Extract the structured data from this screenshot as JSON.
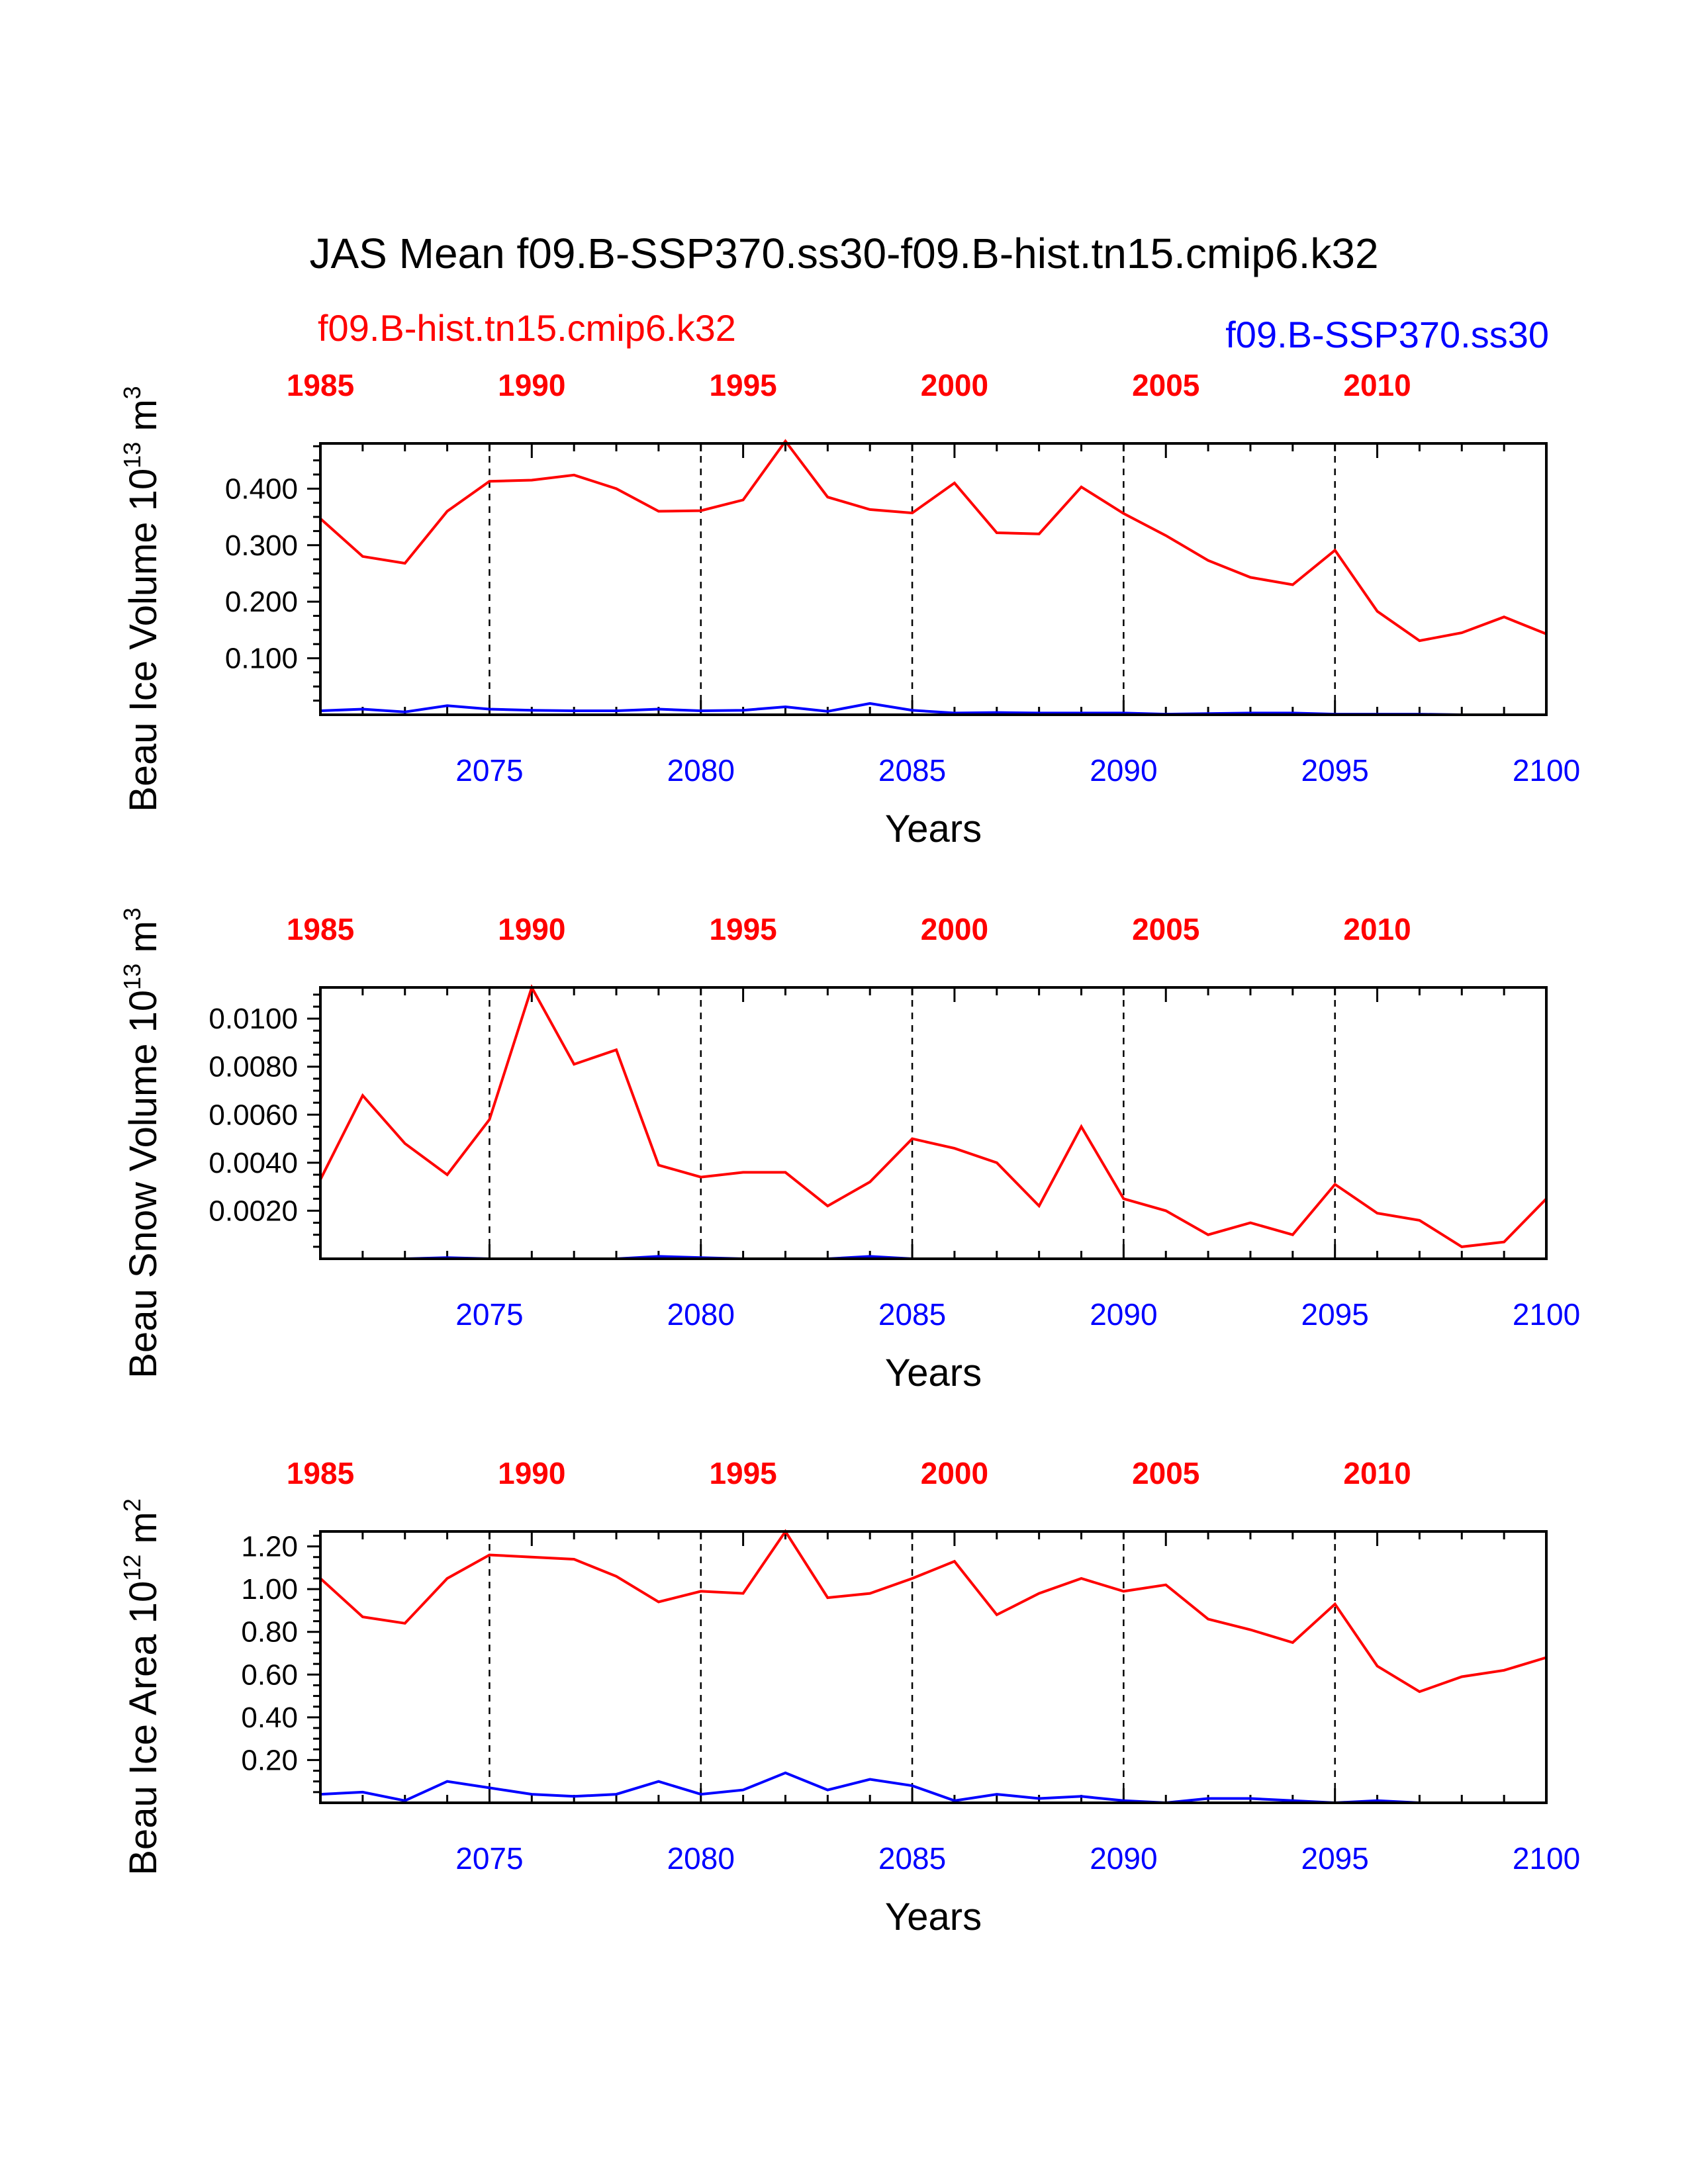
{
  "title": "JAS Mean f09.B-SSP370.ss30-f09.B-hist.tn15.cmip6.k32",
  "legend": {
    "left": "f09.B-hist.tn15.cmip6.k32",
    "right": "f09.B-SSP370.ss30"
  },
  "colors": {
    "hist": "#ff0000",
    "ssp": "#0000ff",
    "axis": "#000000"
  },
  "chart_data": [
    {
      "type": "line",
      "ylabel_main": "Beau Ice Volume 10",
      "ylabel_exp": "13",
      "ylabel_unit": " m",
      "ylabel_unit_exp": "3",
      "xlabel": "Years",
      "ylim": [
        0,
        0.48
      ],
      "yticks": [
        0.1,
        0.2,
        0.3,
        0.4
      ],
      "ytick_labels": [
        "0.100",
        "0.200",
        "0.300",
        "0.400"
      ],
      "xlim": [
        2071,
        2100
      ],
      "top_xlim": [
        1985,
        2014
      ],
      "bottom_ticks": [
        2075,
        2080,
        2085,
        2090,
        2095,
        2100
      ],
      "top_ticks": [
        1985,
        1990,
        1995,
        2000,
        2005,
        2010
      ],
      "dashed_lines_at": [
        2075,
        2080,
        2085,
        2090,
        2095
      ],
      "x": [
        2071,
        2072,
        2073,
        2074,
        2075,
        2076,
        2077,
        2078,
        2079,
        2080,
        2081,
        2082,
        2083,
        2084,
        2085,
        2086,
        2087,
        2088,
        2089,
        2090,
        2091,
        2092,
        2093,
        2094,
        2095,
        2096,
        2097,
        2098,
        2099,
        2100
      ],
      "series": [
        {
          "name": "f09.B-hist.tn15.cmip6.k32",
          "color": "#ff0000",
          "values": [
            0.347,
            0.28,
            0.268,
            0.36,
            0.413,
            0.415,
            0.424,
            0.4,
            0.36,
            0.361,
            0.38,
            0.484,
            0.385,
            0.363,
            0.357,
            0.41,
            0.322,
            0.32,
            0.403,
            0.356,
            0.317,
            0.273,
            0.243,
            0.23,
            0.291,
            0.183,
            0.131,
            0.145,
            0.173,
            0.143
          ]
        },
        {
          "name": "f09.B-SSP370.ss30",
          "color": "#0000ff",
          "values": [
            0.007,
            0.01,
            0.005,
            0.016,
            0.01,
            0.008,
            0.007,
            0.007,
            0.01,
            0.007,
            0.008,
            0.014,
            0.006,
            0.02,
            0.008,
            0.003,
            0.004,
            0.003,
            0.003,
            0.003,
            0.001,
            0.002,
            0.003,
            0.003,
            0.001,
            0.001,
            0.001,
            0.0,
            0.0,
            0.0
          ]
        }
      ]
    },
    {
      "type": "line",
      "ylabel_main": "Beau Snow Volume 10",
      "ylabel_exp": "13",
      "ylabel_unit": " m",
      "ylabel_unit_exp": "3",
      "xlabel": "Years",
      "ylim": [
        0,
        0.0113
      ],
      "yticks": [
        0.002,
        0.004,
        0.006,
        0.008,
        0.01
      ],
      "ytick_labels": [
        "0.0020",
        "0.0040",
        "0.0060",
        "0.0080",
        "0.0100"
      ],
      "xlim": [
        2071,
        2100
      ],
      "top_xlim": [
        1985,
        2014
      ],
      "bottom_ticks": [
        2075,
        2080,
        2085,
        2090,
        2095,
        2100
      ],
      "top_ticks": [
        1985,
        1990,
        1995,
        2000,
        2005,
        2010
      ],
      "dashed_lines_at": [
        2075,
        2080,
        2085,
        2090,
        2095
      ],
      "x": [
        2071,
        2072,
        2073,
        2074,
        2075,
        2076,
        2077,
        2078,
        2079,
        2080,
        2081,
        2082,
        2083,
        2084,
        2085,
        2086,
        2087,
        2088,
        2089,
        2090,
        2091,
        2092,
        2093,
        2094,
        2095,
        2096,
        2097,
        2098,
        2099,
        2100
      ],
      "series": [
        {
          "name": "f09.B-hist.tn15.cmip6.k32",
          "color": "#ff0000",
          "values": [
            0.0033,
            0.0068,
            0.0048,
            0.0035,
            0.0058,
            0.0113,
            0.0081,
            0.0087,
            0.0039,
            0.0034,
            0.0036,
            0.0036,
            0.0022,
            0.0032,
            0.005,
            0.0046,
            0.004,
            0.0022,
            0.0055,
            0.0025,
            0.002,
            0.001,
            0.0015,
            0.001,
            0.0031,
            0.0019,
            0.0016,
            0.0005,
            0.0007,
            0.0025
          ]
        },
        {
          "name": "f09.B-SSP370.ss30",
          "color": "#0000ff",
          "values": [
            0.0,
            0.0,
            0.0,
            5e-05,
            0.0,
            0.0,
            0.0,
            0.0,
            0.0001,
            5e-05,
            0.0,
            0.0,
            0.0,
            0.0001,
            0.0,
            0.0,
            0.0,
            0.0,
            0.0,
            0.0,
            0.0,
            0.0,
            0.0,
            0.0,
            0.0,
            0.0,
            0.0,
            0.0,
            0.0,
            0.0
          ]
        }
      ]
    },
    {
      "type": "line",
      "ylabel_main": "Beau Ice Area 10",
      "ylabel_exp": "12",
      "ylabel_unit": " m",
      "ylabel_unit_exp": "2",
      "xlabel": "Years",
      "ylim": [
        0,
        1.27
      ],
      "yticks": [
        0.2,
        0.4,
        0.6,
        0.8,
        1.0,
        1.2
      ],
      "ytick_labels": [
        "0.20",
        "0.40",
        "0.60",
        "0.80",
        "1.00",
        "1.20"
      ],
      "xlim": [
        2071,
        2100
      ],
      "top_xlim": [
        1985,
        2014
      ],
      "bottom_ticks": [
        2075,
        2080,
        2085,
        2090,
        2095,
        2100
      ],
      "top_ticks": [
        1985,
        1990,
        1995,
        2000,
        2005,
        2010
      ],
      "dashed_lines_at": [
        2075,
        2080,
        2085,
        2090,
        2095
      ],
      "x": [
        2071,
        2072,
        2073,
        2074,
        2075,
        2076,
        2077,
        2078,
        2079,
        2080,
        2081,
        2082,
        2083,
        2084,
        2085,
        2086,
        2087,
        2088,
        2089,
        2090,
        2091,
        2092,
        2093,
        2094,
        2095,
        2096,
        2097,
        2098,
        2099,
        2100
      ],
      "series": [
        {
          "name": "f09.B-hist.tn15.cmip6.k32",
          "color": "#ff0000",
          "values": [
            1.05,
            0.87,
            0.84,
            1.05,
            1.16,
            1.15,
            1.14,
            1.06,
            0.94,
            0.99,
            0.98,
            1.27,
            0.96,
            0.98,
            1.05,
            1.13,
            0.88,
            0.98,
            1.05,
            0.99,
            1.02,
            0.86,
            0.81,
            0.75,
            0.93,
            0.64,
            0.52,
            0.59,
            0.62,
            0.68
          ]
        },
        {
          "name": "f09.B-SSP370.ss30",
          "color": "#0000ff",
          "values": [
            0.04,
            0.05,
            0.01,
            0.1,
            0.07,
            0.04,
            0.03,
            0.04,
            0.1,
            0.04,
            0.06,
            0.14,
            0.06,
            0.11,
            0.08,
            0.01,
            0.04,
            0.02,
            0.03,
            0.01,
            0.0,
            0.02,
            0.02,
            0.01,
            0.0,
            0.01,
            0.0,
            0.0,
            0.0,
            0.0
          ]
        }
      ]
    }
  ]
}
